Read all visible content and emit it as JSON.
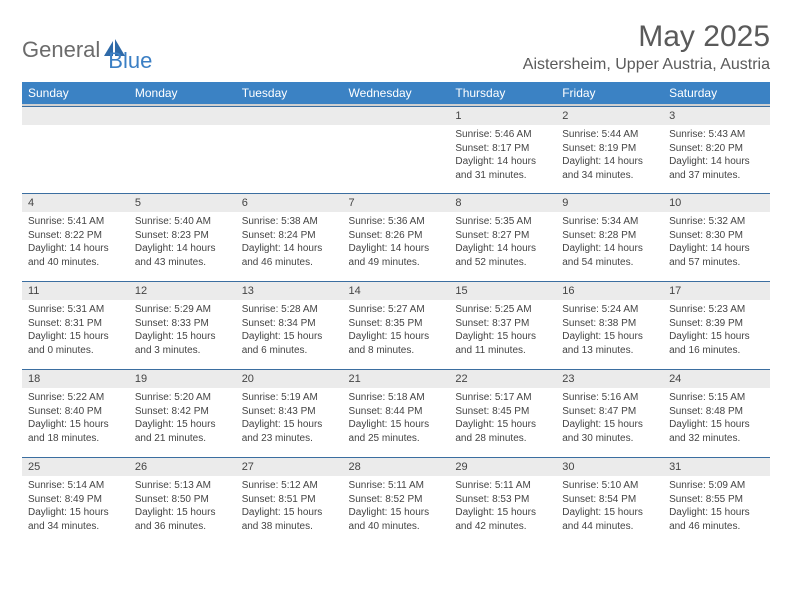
{
  "logo": {
    "text1": "General",
    "text2": "Blue"
  },
  "title": "May 2025",
  "location": "Aistersheim, Upper Austria, Austria",
  "header_bg": "#3b82c4",
  "header_text": "#ffffff",
  "daynum_bg": "#ebebeb",
  "border_color": "#3b6ea0",
  "text_color": "#444444",
  "dayNames": [
    "Sunday",
    "Monday",
    "Tuesday",
    "Wednesday",
    "Thursday",
    "Friday",
    "Saturday"
  ],
  "weeks": [
    [
      null,
      null,
      null,
      null,
      {
        "n": "1",
        "sr": "5:46 AM",
        "ss": "8:17 PM",
        "dl": "14 hours and 31 minutes."
      },
      {
        "n": "2",
        "sr": "5:44 AM",
        "ss": "8:19 PM",
        "dl": "14 hours and 34 minutes."
      },
      {
        "n": "3",
        "sr": "5:43 AM",
        "ss": "8:20 PM",
        "dl": "14 hours and 37 minutes."
      }
    ],
    [
      {
        "n": "4",
        "sr": "5:41 AM",
        "ss": "8:22 PM",
        "dl": "14 hours and 40 minutes."
      },
      {
        "n": "5",
        "sr": "5:40 AM",
        "ss": "8:23 PM",
        "dl": "14 hours and 43 minutes."
      },
      {
        "n": "6",
        "sr": "5:38 AM",
        "ss": "8:24 PM",
        "dl": "14 hours and 46 minutes."
      },
      {
        "n": "7",
        "sr": "5:36 AM",
        "ss": "8:26 PM",
        "dl": "14 hours and 49 minutes."
      },
      {
        "n": "8",
        "sr": "5:35 AM",
        "ss": "8:27 PM",
        "dl": "14 hours and 52 minutes."
      },
      {
        "n": "9",
        "sr": "5:34 AM",
        "ss": "8:28 PM",
        "dl": "14 hours and 54 minutes."
      },
      {
        "n": "10",
        "sr": "5:32 AM",
        "ss": "8:30 PM",
        "dl": "14 hours and 57 minutes."
      }
    ],
    [
      {
        "n": "11",
        "sr": "5:31 AM",
        "ss": "8:31 PM",
        "dl": "15 hours and 0 minutes."
      },
      {
        "n": "12",
        "sr": "5:29 AM",
        "ss": "8:33 PM",
        "dl": "15 hours and 3 minutes."
      },
      {
        "n": "13",
        "sr": "5:28 AM",
        "ss": "8:34 PM",
        "dl": "15 hours and 6 minutes."
      },
      {
        "n": "14",
        "sr": "5:27 AM",
        "ss": "8:35 PM",
        "dl": "15 hours and 8 minutes."
      },
      {
        "n": "15",
        "sr": "5:25 AM",
        "ss": "8:37 PM",
        "dl": "15 hours and 11 minutes."
      },
      {
        "n": "16",
        "sr": "5:24 AM",
        "ss": "8:38 PM",
        "dl": "15 hours and 13 minutes."
      },
      {
        "n": "17",
        "sr": "5:23 AM",
        "ss": "8:39 PM",
        "dl": "15 hours and 16 minutes."
      }
    ],
    [
      {
        "n": "18",
        "sr": "5:22 AM",
        "ss": "8:40 PM",
        "dl": "15 hours and 18 minutes."
      },
      {
        "n": "19",
        "sr": "5:20 AM",
        "ss": "8:42 PM",
        "dl": "15 hours and 21 minutes."
      },
      {
        "n": "20",
        "sr": "5:19 AM",
        "ss": "8:43 PM",
        "dl": "15 hours and 23 minutes."
      },
      {
        "n": "21",
        "sr": "5:18 AM",
        "ss": "8:44 PM",
        "dl": "15 hours and 25 minutes."
      },
      {
        "n": "22",
        "sr": "5:17 AM",
        "ss": "8:45 PM",
        "dl": "15 hours and 28 minutes."
      },
      {
        "n": "23",
        "sr": "5:16 AM",
        "ss": "8:47 PM",
        "dl": "15 hours and 30 minutes."
      },
      {
        "n": "24",
        "sr": "5:15 AM",
        "ss": "8:48 PM",
        "dl": "15 hours and 32 minutes."
      }
    ],
    [
      {
        "n": "25",
        "sr": "5:14 AM",
        "ss": "8:49 PM",
        "dl": "15 hours and 34 minutes."
      },
      {
        "n": "26",
        "sr": "5:13 AM",
        "ss": "8:50 PM",
        "dl": "15 hours and 36 minutes."
      },
      {
        "n": "27",
        "sr": "5:12 AM",
        "ss": "8:51 PM",
        "dl": "15 hours and 38 minutes."
      },
      {
        "n": "28",
        "sr": "5:11 AM",
        "ss": "8:52 PM",
        "dl": "15 hours and 40 minutes."
      },
      {
        "n": "29",
        "sr": "5:11 AM",
        "ss": "8:53 PM",
        "dl": "15 hours and 42 minutes."
      },
      {
        "n": "30",
        "sr": "5:10 AM",
        "ss": "8:54 PM",
        "dl": "15 hours and 44 minutes."
      },
      {
        "n": "31",
        "sr": "5:09 AM",
        "ss": "8:55 PM",
        "dl": "15 hours and 46 minutes."
      }
    ]
  ],
  "labels": {
    "sunrise": "Sunrise:",
    "sunset": "Sunset:",
    "daylight": "Daylight:"
  }
}
